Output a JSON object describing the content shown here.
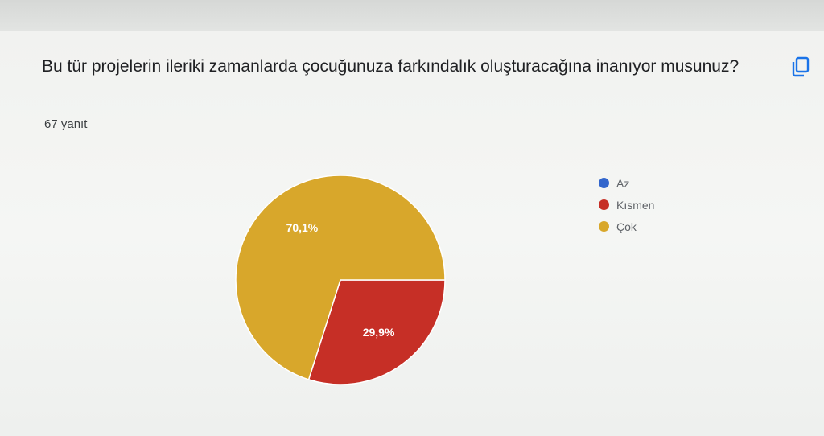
{
  "question": {
    "title": "Bu tür projelerin ileriki zamanlarda çocuğunuza farkındalık oluşturacağına inanıyor musunuz?",
    "response_count": "67 yanıt"
  },
  "copy_icon": "copy-icon",
  "chart_data": {
    "type": "pie",
    "categories": [
      "Az",
      "Kısmen",
      "Çok"
    ],
    "values": [
      0,
      29.9,
      70.1
    ],
    "value_labels": [
      "",
      "29,9%",
      "70,1%"
    ],
    "colors": [
      "#3366cc",
      "#c62f26",
      "#d8a72b"
    ],
    "legend_position": "right"
  }
}
